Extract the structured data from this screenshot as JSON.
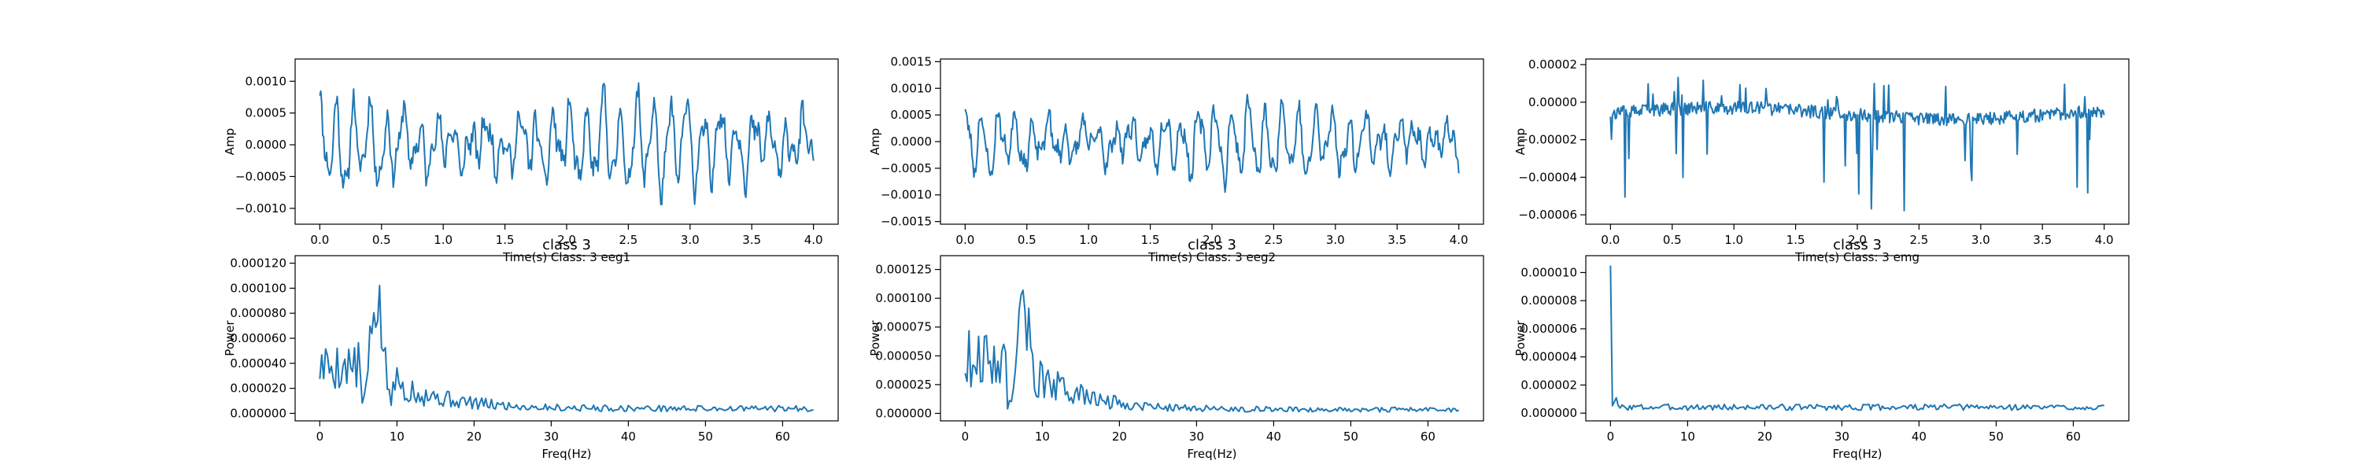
{
  "chart_data": [
    {
      "type": "line",
      "title": "",
      "xlabel": "Time(s) Class: 3 eeg1",
      "ylabel": "Amp",
      "xlim": [
        -0.2,
        4.2
      ],
      "ylim": [
        -0.00125,
        0.00135
      ],
      "xticks": [
        0.0,
        0.5,
        1.0,
        1.5,
        2.0,
        2.5,
        3.0,
        3.5,
        4.0
      ],
      "xtick_labels": [
        "0.0",
        "0.5",
        "1.0",
        "1.5",
        "2.0",
        "2.5",
        "3.0",
        "3.5",
        "4.0"
      ],
      "yticks": [
        -0.001,
        -0.0005,
        0.0,
        0.0005,
        0.001
      ],
      "ytick_labels": [
        "−0.0010",
        "−0.0005",
        "0.0000",
        "0.0005",
        "0.0010"
      ],
      "grid": false,
      "line_color": "#1f77b4",
      "signal": {
        "kind": "eeg",
        "n": 512,
        "x0": 0.0,
        "x1": 4.0,
        "fs": 128,
        "amp": 0.00058,
        "min": -0.00115,
        "max": 0.00122,
        "seed": 11
      }
    },
    {
      "type": "line",
      "title": "",
      "xlabel": "Time(s) Class: 3 eeg2",
      "ylabel": "Amp",
      "xlim": [
        -0.2,
        4.2
      ],
      "ylim": [
        -0.00155,
        0.00155
      ],
      "xticks": [
        0.0,
        0.5,
        1.0,
        1.5,
        2.0,
        2.5,
        3.0,
        3.5,
        4.0
      ],
      "xtick_labels": [
        "0.0",
        "0.5",
        "1.0",
        "1.5",
        "2.0",
        "2.5",
        "3.0",
        "3.5",
        "4.0"
      ],
      "yticks": [
        -0.0015,
        -0.001,
        -0.0005,
        0.0,
        0.0005,
        0.001,
        0.0015
      ],
      "ytick_labels": [
        "−0.0015",
        "−0.0010",
        "−0.0005",
        "0.0000",
        "0.0005",
        "0.0010",
        "0.0015"
      ],
      "grid": false,
      "line_color": "#1f77b4",
      "signal": {
        "kind": "eeg",
        "n": 512,
        "x0": 0.0,
        "x1": 4.0,
        "fs": 128,
        "amp": 0.00055,
        "min": -0.00135,
        "max": 0.0014,
        "seed": 23
      }
    },
    {
      "type": "line",
      "title": "",
      "xlabel": "Time(s) Class: 3 emg",
      "ylabel": "Amp",
      "xlim": [
        -0.2,
        4.2
      ],
      "ylim": [
        -6.5e-05,
        2.3e-05
      ],
      "xticks": [
        0.0,
        0.5,
        1.0,
        1.5,
        2.0,
        2.5,
        3.0,
        3.5,
        4.0
      ],
      "xtick_labels": [
        "0.0",
        "0.5",
        "1.0",
        "1.5",
        "2.0",
        "2.5",
        "3.0",
        "3.5",
        "4.0"
      ],
      "yticks": [
        -6e-05,
        -4e-05,
        -2e-05,
        0.0,
        2e-05
      ],
      "ytick_labels": [
        "−0.00006",
        "−0.00004",
        "−0.00002",
        "0.00000",
        "0.00002"
      ],
      "grid": false,
      "line_color": "#1f77b4",
      "signal": {
        "kind": "emg",
        "n": 512,
        "x0": 0.0,
        "x1": 4.0,
        "base": -6e-06,
        "noise": 3.5e-06,
        "seed": 37,
        "min": -6e-05,
        "max": 1.8e-05
      }
    },
    {
      "type": "line",
      "title": "class 3",
      "xlabel": "Freq(Hz)",
      "ylabel": "Power",
      "xlim": [
        -3.2,
        67.2
      ],
      "ylim": [
        -6e-06,
        0.000126
      ],
      "xticks": [
        0,
        10,
        20,
        30,
        40,
        50,
        60
      ],
      "xtick_labels": [
        "0",
        "10",
        "20",
        "30",
        "40",
        "50",
        "60"
      ],
      "yticks": [
        0.0,
        2e-05,
        4e-05,
        6e-05,
        8e-05,
        0.0001,
        0.00012
      ],
      "ytick_labels": [
        "0.000000",
        "0.000020",
        "0.000040",
        "0.000060",
        "0.000080",
        "0.000100",
        "0.000120"
      ],
      "grid": false,
      "line_color": "#1f77b4",
      "signal": {
        "kind": "psd",
        "n": 257,
        "x0": 0,
        "x1": 64,
        "start": 5.2e-05,
        "peak_f": 7.4,
        "peak": 0.00012,
        "floor": 4e-06,
        "seed": 5
      }
    },
    {
      "type": "line",
      "title": "class 3",
      "xlabel": "Freq(Hz)",
      "ylabel": "Power",
      "xlim": [
        -3.2,
        67.2
      ],
      "ylim": [
        -6.5e-06,
        0.000137
      ],
      "xticks": [
        0,
        10,
        20,
        30,
        40,
        50,
        60
      ],
      "xtick_labels": [
        "0",
        "10",
        "20",
        "30",
        "40",
        "50",
        "60"
      ],
      "yticks": [
        0.0,
        2.5e-05,
        5e-05,
        7.5e-05,
        0.0001,
        0.000125
      ],
      "ytick_labels": [
        "0.000000",
        "0.000025",
        "0.000050",
        "0.000075",
        "0.000100",
        "0.000125"
      ],
      "grid": false,
      "line_color": "#1f77b4",
      "signal": {
        "kind": "psd",
        "n": 257,
        "x0": 0,
        "x1": 64,
        "start": 6.6e-05,
        "peak_f": 7.6,
        "peak": 0.00013,
        "floor": 3.5e-06,
        "seed": 9
      }
    },
    {
      "type": "line",
      "title": "class 3",
      "xlabel": "Freq(Hz)",
      "ylabel": "Power",
      "xlim": [
        -3.2,
        67.2
      ],
      "ylim": [
        -5.5e-07,
        1.12e-05
      ],
      "xticks": [
        0,
        10,
        20,
        30,
        40,
        50,
        60
      ],
      "xtick_labels": [
        "0",
        "10",
        "20",
        "30",
        "40",
        "50",
        "60"
      ],
      "yticks": [
        0.0,
        2e-06,
        4e-06,
        6e-06,
        8e-06,
        1e-05
      ],
      "ytick_labels": [
        "0.000000",
        "0.000002",
        "0.000004",
        "0.000006",
        "0.000008",
        "0.000010"
      ],
      "grid": false,
      "line_color": "#1f77b4",
      "signal": {
        "kind": "psd_emg",
        "n": 257,
        "x0": 0,
        "x1": 64,
        "start": 1.05e-05,
        "floor": 4e-07,
        "seed": 3
      }
    }
  ]
}
